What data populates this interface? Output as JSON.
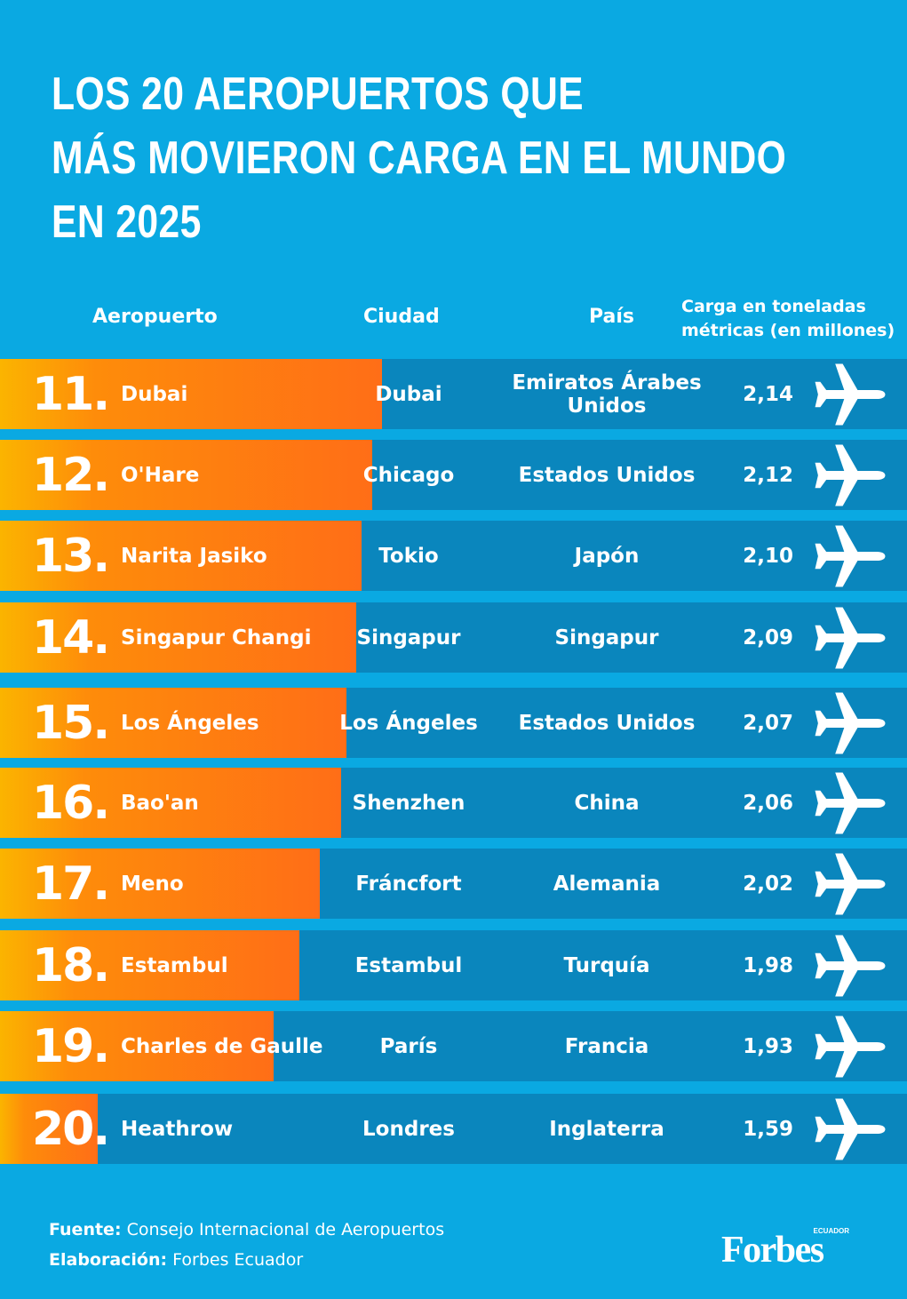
{
  "title": {
    "line1": "LOS 20 AEROPUERTOS QUE",
    "line2": "MÁS MOVIERON CARGA EN EL MUNDO",
    "line3": "EN 2025"
  },
  "headers": {
    "airport": "Aeropuerto",
    "city": "Ciudad",
    "country": "País",
    "cargo": "Carga en toneladas métricas (en millones)"
  },
  "colors": {
    "background": "#0aa9e2",
    "row": "#0a86bd",
    "bar_start": "#fbb400",
    "bar_end": "#ff6e17"
  },
  "icon": "airplane-icon",
  "chart_data": {
    "type": "bar",
    "rows": [
      {
        "rank": "11.",
        "airport": "Dubai",
        "city": "Dubai",
        "country": "Emiratos Árabes Unidos",
        "value": 2.14,
        "value_label": "2,14"
      },
      {
        "rank": "12.",
        "airport": "O'Hare",
        "city": "Chicago",
        "country": "Estados Unidos",
        "value": 2.12,
        "value_label": "2,12"
      },
      {
        "rank": "13.",
        "airport": "Narita Jasiko",
        "city": "Tokio",
        "country": "Japón",
        "value": 2.1,
        "value_label": "2,10"
      },
      {
        "rank": "14.",
        "airport": "Singapur Changi",
        "city": "Singapur",
        "country": "Singapur",
        "value": 2.09,
        "value_label": "2,09"
      },
      {
        "rank": "15.",
        "airport": "Los Ángeles",
        "city": "Los Ángeles",
        "country": "Estados Unidos",
        "value": 2.07,
        "value_label": "2,07"
      },
      {
        "rank": "16.",
        "airport": "Bao'an",
        "city": "Shenzhen",
        "country": "China",
        "value": 2.06,
        "value_label": "2,06"
      },
      {
        "rank": "17.",
        "airport": "Meno",
        "city": "Fráncfort",
        "country": "Alemania",
        "value": 2.02,
        "value_label": "2,02"
      },
      {
        "rank": "18.",
        "airport": "Estambul",
        "city": "Estambul",
        "country": "Turquía",
        "value": 1.98,
        "value_label": "1,98"
      },
      {
        "rank": "19.",
        "airport": "Charles de Gaulle",
        "city": "París",
        "country": "Francia",
        "value": 1.93,
        "value_label": "1,93"
      },
      {
        "rank": "20.",
        "airport": "Heathrow",
        "city": "Londres",
        "country": "Inglaterra",
        "value": 1.59,
        "value_label": "1,59"
      }
    ]
  },
  "footer": {
    "source_label": "Fuente:",
    "source_value": "Consejo Internacional de Aeropuertos",
    "credit_label": "Elaboración:",
    "credit_value": "Forbes Ecuador"
  },
  "logo": {
    "text": "Forbes",
    "sub": "ECUADOR"
  }
}
